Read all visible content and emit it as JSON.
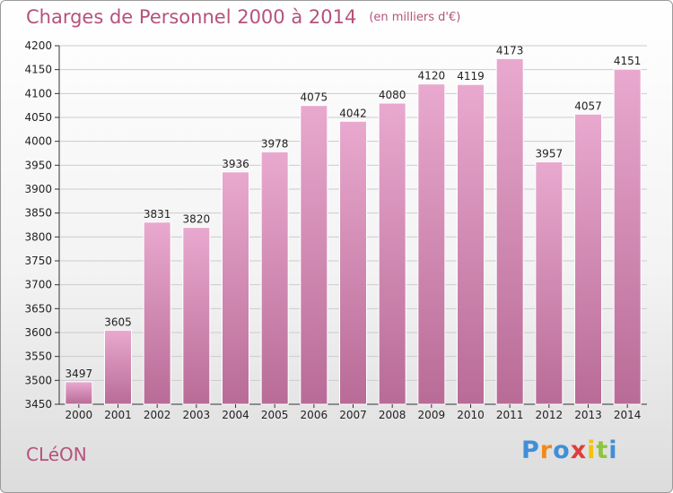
{
  "header": {
    "title": "Charges de Personnel 2000 à 2014",
    "unit": "(en milliers d'€)"
  },
  "footer": {
    "place": "CLéON",
    "logo_letters": [
      "P",
      "r",
      "o",
      "x",
      "i",
      "t",
      "i"
    ],
    "logo_colors": [
      "#3f8fd8",
      "#f08a1c",
      "#3f8fd8",
      "#e23b3b",
      "#f2c20f",
      "#8cc63e",
      "#3f8fd8"
    ]
  },
  "colors": {
    "title": "#b5527c",
    "bar_top": "#e9a9cf",
    "bar_bottom": "#b86b96",
    "grid": "#cccccc"
  },
  "chart_data": {
    "type": "bar",
    "title": "Charges de Personnel 2000 à 2014",
    "subtitle": "(en milliers d'€)",
    "categories": [
      "2000",
      "2001",
      "2002",
      "2003",
      "2004",
      "2005",
      "2006",
      "2007",
      "2008",
      "2009",
      "2010",
      "2011",
      "2012",
      "2013",
      "2014"
    ],
    "values": [
      3497,
      3605,
      3831,
      3820,
      3936,
      3978,
      4075,
      4042,
      4080,
      4120,
      4119,
      4173,
      3957,
      4057,
      4151
    ],
    "ylim": [
      3450,
      4200
    ],
    "yticks": [
      3450,
      3500,
      3550,
      3600,
      3650,
      3700,
      3750,
      3800,
      3850,
      3900,
      3950,
      4000,
      4050,
      4100,
      4150,
      4200
    ],
    "grid": true,
    "data_labels": true
  }
}
